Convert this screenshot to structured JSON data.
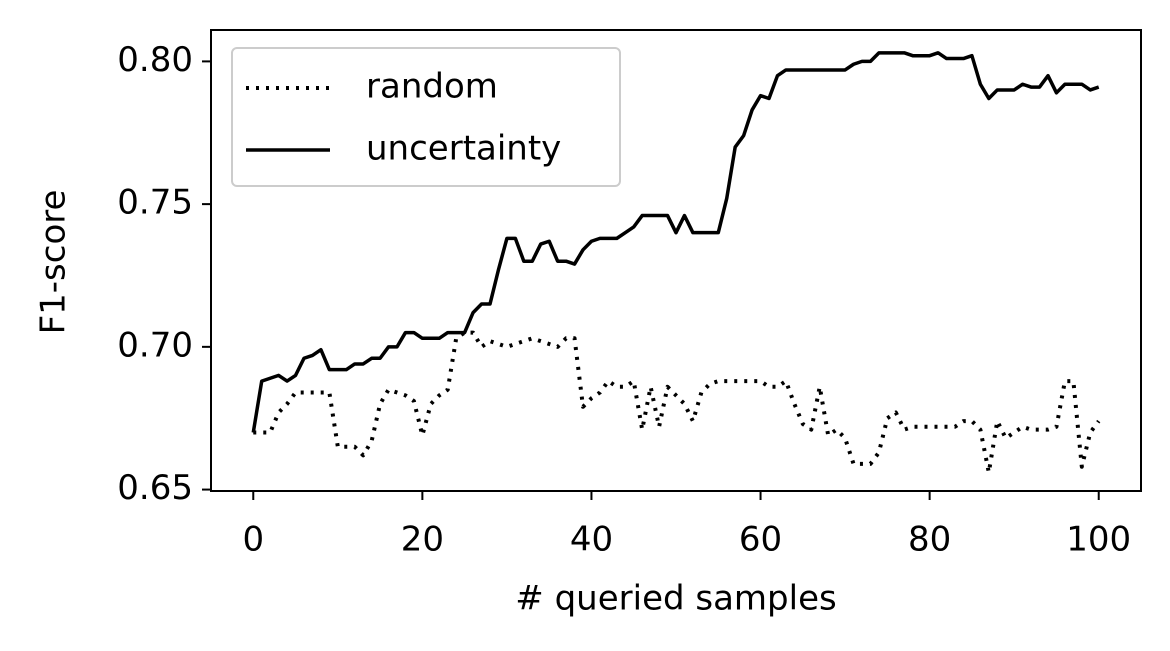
{
  "chart_data": {
    "type": "line",
    "xlabel": "# queried samples",
    "ylabel": "F1-score",
    "x": [
      0,
      1,
      2,
      3,
      4,
      5,
      6,
      7,
      8,
      9,
      10,
      11,
      12,
      13,
      14,
      15,
      16,
      17,
      18,
      19,
      20,
      21,
      22,
      23,
      24,
      25,
      26,
      27,
      28,
      29,
      30,
      31,
      32,
      33,
      34,
      35,
      36,
      37,
      38,
      39,
      40,
      41,
      42,
      43,
      44,
      45,
      46,
      47,
      48,
      49,
      50,
      51,
      52,
      53,
      54,
      55,
      56,
      57,
      58,
      59,
      60,
      61,
      62,
      63,
      64,
      65,
      66,
      67,
      68,
      69,
      70,
      71,
      72,
      73,
      74,
      75,
      76,
      77,
      78,
      79,
      80,
      81,
      82,
      83,
      84,
      85,
      86,
      87,
      88,
      89,
      90,
      91,
      92,
      93,
      94,
      95,
      96,
      97,
      98,
      99,
      100
    ],
    "series": [
      {
        "name": "random",
        "color": "#000000",
        "linestyle": "dotted",
        "values": [
          0.67,
          0.67,
          0.67,
          0.677,
          0.68,
          0.684,
          0.684,
          0.684,
          0.684,
          0.684,
          0.665,
          0.665,
          0.665,
          0.662,
          0.667,
          0.68,
          0.685,
          0.684,
          0.683,
          0.681,
          0.669,
          0.68,
          0.683,
          0.685,
          0.703,
          0.705,
          0.705,
          0.7,
          0.702,
          0.701,
          0.7,
          0.701,
          0.702,
          0.703,
          0.702,
          0.701,
          0.7,
          0.703,
          0.703,
          0.679,
          0.682,
          0.684,
          0.688,
          0.686,
          0.686,
          0.688,
          0.671,
          0.686,
          0.672,
          0.686,
          0.683,
          0.68,
          0.674,
          0.684,
          0.687,
          0.688,
          0.688,
          0.688,
          0.688,
          0.688,
          0.688,
          0.686,
          0.686,
          0.688,
          0.68,
          0.673,
          0.671,
          0.686,
          0.669,
          0.671,
          0.668,
          0.659,
          0.659,
          0.659,
          0.663,
          0.675,
          0.677,
          0.671,
          0.672,
          0.672,
          0.672,
          0.672,
          0.672,
          0.672,
          0.674,
          0.674,
          0.671,
          0.656,
          0.674,
          0.668,
          0.67,
          0.672,
          0.671,
          0.671,
          0.671,
          0.672,
          0.688,
          0.688,
          0.658,
          0.67,
          0.674
        ]
      },
      {
        "name": "uncertainty",
        "color": "#000000",
        "linestyle": "solid",
        "values": [
          0.67,
          0.688,
          0.689,
          0.69,
          0.688,
          0.69,
          0.696,
          0.697,
          0.699,
          0.692,
          0.692,
          0.692,
          0.694,
          0.694,
          0.696,
          0.696,
          0.7,
          0.7,
          0.705,
          0.705,
          0.703,
          0.703,
          0.703,
          0.705,
          0.705,
          0.705,
          0.712,
          0.715,
          0.715,
          0.727,
          0.738,
          0.738,
          0.73,
          0.73,
          0.736,
          0.737,
          0.73,
          0.73,
          0.729,
          0.734,
          0.737,
          0.738,
          0.738,
          0.738,
          0.74,
          0.742,
          0.746,
          0.746,
          0.746,
          0.746,
          0.74,
          0.746,
          0.74,
          0.74,
          0.74,
          0.74,
          0.752,
          0.77,
          0.774,
          0.783,
          0.788,
          0.787,
          0.795,
          0.797,
          0.797,
          0.797,
          0.797,
          0.797,
          0.797,
          0.797,
          0.797,
          0.799,
          0.8,
          0.8,
          0.803,
          0.803,
          0.803,
          0.803,
          0.802,
          0.802,
          0.802,
          0.803,
          0.801,
          0.801,
          0.801,
          0.802,
          0.792,
          0.787,
          0.79,
          0.79,
          0.79,
          0.792,
          0.791,
          0.791,
          0.795,
          0.789,
          0.792,
          0.792,
          0.792,
          0.79,
          0.791
        ]
      }
    ],
    "xlim": [
      -5,
      105
    ],
    "ylim": [
      0.6495,
      0.811
    ],
    "xticks": [
      0,
      20,
      40,
      60,
      80,
      100
    ],
    "yticks": [
      0.65,
      {
        "value": 0.7,
        "label": "0.70"
      },
      0.75,
      {
        "value": 0.8,
        "label": "0.80"
      }
    ],
    "grid": false,
    "legend": "upper left"
  }
}
